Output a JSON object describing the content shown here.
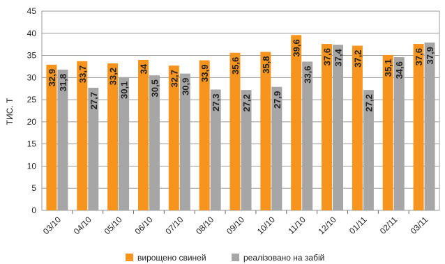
{
  "chart_data": {
    "type": "bar",
    "ylabel": "ТИС. Т",
    "xlabel": "",
    "ylim": [
      0,
      45
    ],
    "y_ticks": [
      0,
      5,
      10,
      15,
      20,
      25,
      30,
      35,
      40,
      45
    ],
    "grid": "horizontal",
    "legend_position": "bottom",
    "categories": [
      "03/10",
      "04/10",
      "05/10",
      "06/10",
      "07/10",
      "08/10",
      "09/10",
      "10/10",
      "11/10",
      "12/10",
      "01/11",
      "02/11",
      "03/11"
    ],
    "series": [
      {
        "name": "вирощено свиней",
        "color": "#F7941D",
        "values": [
          32.9,
          33.7,
          33.2,
          34,
          32.7,
          33.9,
          35.6,
          35.8,
          39.6,
          37.6,
          37.2,
          35.1,
          37.6
        ],
        "labels": [
          "32,9",
          "33,7",
          "33,2",
          "34",
          "32,7",
          "33,9",
          "35,6",
          "35,8",
          "39,6",
          "37,6",
          "37,2",
          "35,1",
          "37,6"
        ]
      },
      {
        "name": "реалізовано на забій",
        "color": "#A6A6A6",
        "values": [
          31.8,
          27.7,
          30.1,
          30.5,
          30.9,
          27.3,
          27.2,
          27.9,
          33.6,
          37.4,
          27.2,
          34.6,
          37.9
        ],
        "labels": [
          "31,8",
          "27,7",
          "30,1",
          "30,5",
          "30,9",
          "27,3",
          "27,2",
          "27,9",
          "33,6",
          "37,4",
          "27,2",
          "34,6",
          "37,9"
        ]
      }
    ]
  }
}
